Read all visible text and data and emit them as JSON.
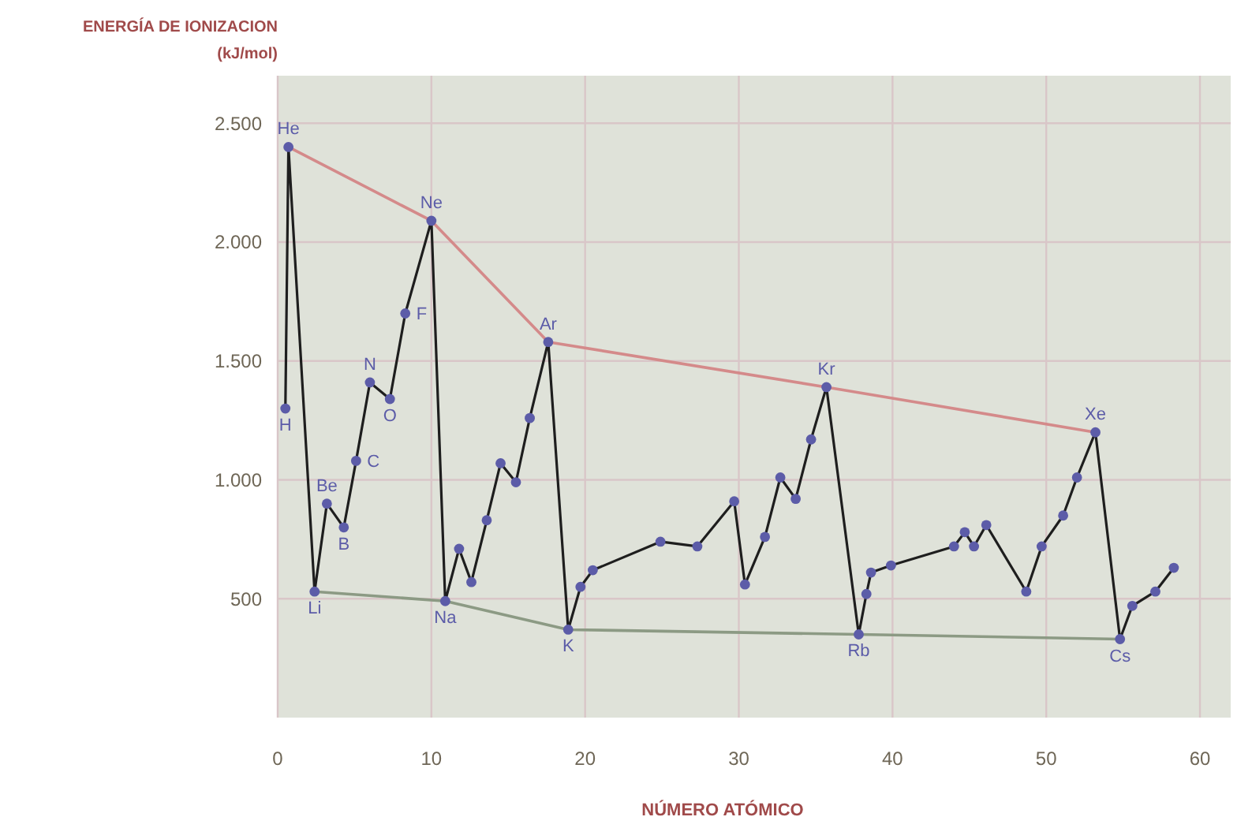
{
  "chart_data": {
    "type": "line",
    "ylabel": "ENERGÍA DE IONIZACION (kJ/mol)",
    "xlabel": "NÚMERO ATÓMICO",
    "xlim": [
      0,
      62
    ],
    "xticks": [
      0,
      10,
      20,
      30,
      40,
      50,
      60
    ],
    "ylim": [
      0,
      2700
    ],
    "yticks": [
      {
        "value": 500,
        "label": "500"
      },
      {
        "value": 1000,
        "label": "1.000"
      },
      {
        "value": 1500,
        "label": "1.500"
      },
      {
        "value": 2000,
        "label": "2.000"
      },
      {
        "value": 2500,
        "label": "2.500"
      }
    ],
    "grid": true,
    "series": [
      {
        "color": "#1e1e1e",
        "marker": "none",
        "x": [
          0.5,
          0.7,
          2.4,
          3.2,
          4.3,
          5.1,
          6,
          7.3,
          8.3,
          10,
          10.9,
          11.8,
          12.6,
          13.6,
          14.5,
          15.5,
          16.4,
          17.6,
          18.9,
          19.7,
          20.5,
          24.9,
          27.3,
          29.7,
          30.4,
          31.7,
          32.7,
          33.7,
          34.7,
          35.7,
          37.8,
          38.3,
          38.6,
          39.9,
          44,
          44.7,
          45.3,
          46.1,
          48.7,
          49.7,
          51.1,
          52,
          53.2,
          54.8,
          55.6,
          57.1,
          58.3
        ],
        "values": [
          1300,
          2400,
          530,
          900,
          800,
          1080,
          1410,
          1340,
          1700,
          2090,
          490,
          710,
          570,
          830,
          1070,
          990,
          1260,
          1580,
          370,
          550,
          620,
          740,
          720,
          910,
          560,
          760,
          1010,
          920,
          1170,
          1390,
          350,
          520,
          610,
          640,
          720,
          780,
          720,
          810,
          530,
          720,
          850,
          1010,
          1200,
          330,
          470,
          530,
          630
        ]
      },
      {
        "type": "scatter",
        "marker": "circle",
        "color": "#5c5ca8",
        "x": [
          0.5,
          0.7,
          2.4,
          3.2,
          4.3,
          5.1,
          6,
          7.3,
          8.3,
          10,
          10.9,
          11.8,
          12.6,
          13.6,
          14.5,
          15.5,
          16.4,
          17.6,
          18.9,
          19.7,
          20.5,
          24.9,
          27.3,
          29.7,
          30.4,
          31.7,
          32.7,
          33.7,
          34.7,
          35.7,
          37.8,
          38.3,
          38.6,
          39.9,
          44,
          44.7,
          45.3,
          46.1,
          48.7,
          49.7,
          51.1,
          52,
          53.2,
          54.8,
          55.6,
          57.1,
          58.3
        ],
        "values": [
          1300,
          2400,
          530,
          900,
          800,
          1080,
          1410,
          1340,
          1700,
          2090,
          490,
          710,
          570,
          830,
          1070,
          990,
          1260,
          1580,
          370,
          550,
          620,
          740,
          720,
          910,
          560,
          760,
          1010,
          920,
          1170,
          1390,
          350,
          520,
          610,
          640,
          720,
          780,
          720,
          810,
          530,
          720,
          850,
          1010,
          1200,
          330,
          470,
          530,
          630
        ]
      },
      {
        "color": "#d48a8a",
        "marker": "none",
        "x": [
          0.7,
          10,
          17.6,
          35.7,
          53.2
        ],
        "values": [
          2400,
          2090,
          1580,
          1390,
          1200
        ]
      },
      {
        "color": "#8c9a84",
        "marker": "none",
        "x": [
          2.4,
          10.9,
          18.9,
          37.8,
          54.8
        ],
        "values": [
          530,
          490,
          370,
          350,
          330
        ]
      }
    ],
    "annotations": [
      {
        "text": "H",
        "x": 0.5,
        "y": 1300
      },
      {
        "text": "He",
        "x": 0.7,
        "y": 2400
      },
      {
        "text": "Li",
        "x": 2.4,
        "y": 530
      },
      {
        "text": "Be",
        "x": 3.2,
        "y": 900
      },
      {
        "text": "B",
        "x": 4.3,
        "y": 800
      },
      {
        "text": "C",
        "x": 5.1,
        "y": 1080
      },
      {
        "text": "N",
        "x": 6,
        "y": 1410
      },
      {
        "text": "O",
        "x": 7.3,
        "y": 1340
      },
      {
        "text": "F",
        "x": 8.3,
        "y": 1700
      },
      {
        "text": "Ne",
        "x": 10,
        "y": 2090
      },
      {
        "text": "Na",
        "x": 10.9,
        "y": 490
      },
      {
        "text": "Ar",
        "x": 17.6,
        "y": 1580
      },
      {
        "text": "K",
        "x": 18.9,
        "y": 370
      },
      {
        "text": "Kr",
        "x": 35.7,
        "y": 1390
      },
      {
        "text": "Rb",
        "x": 37.8,
        "y": 350
      },
      {
        "text": "Xe",
        "x": 53.2,
        "y": 1200
      },
      {
        "text": "Cs",
        "x": 54.8,
        "y": 330
      }
    ]
  }
}
